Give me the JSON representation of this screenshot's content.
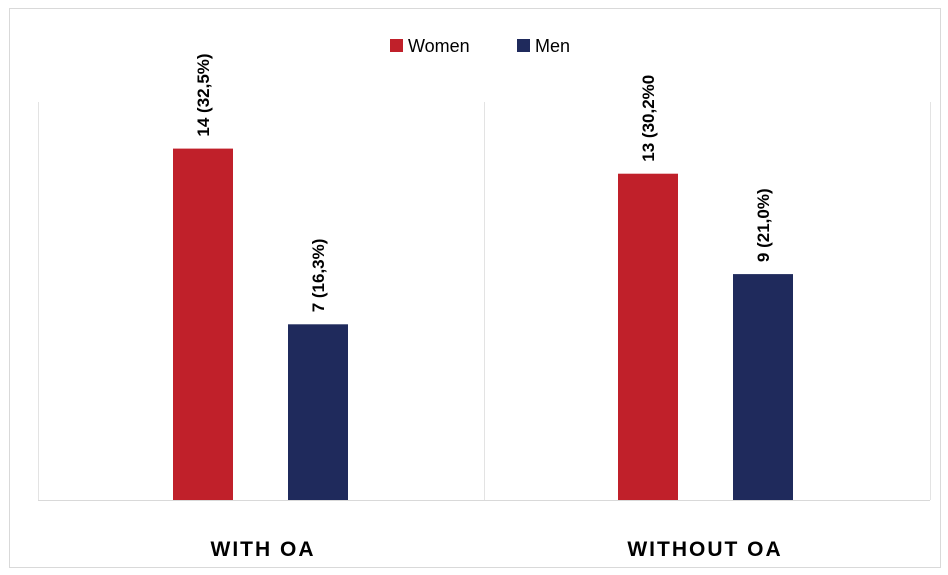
{
  "chart_data": {
    "type": "bar",
    "title": "",
    "xlabel": "",
    "ylabel": "",
    "categories": [
      "WITH OA",
      "WITHOUT OA"
    ],
    "series": [
      {
        "name": "Women",
        "color": "#c0202a",
        "values": [
          14,
          13
        ],
        "labels": [
          "14 (32,5%)",
          "13 (30,2%0"
        ]
      },
      {
        "name": "Men",
        "color": "#1f2a5c",
        "values": [
          7,
          9
        ],
        "labels": [
          "7 (16,3%)",
          "9 (21,0%)"
        ]
      }
    ],
    "ylim": [
      0,
      17.5
    ],
    "grid": false,
    "legend": "top-center"
  }
}
